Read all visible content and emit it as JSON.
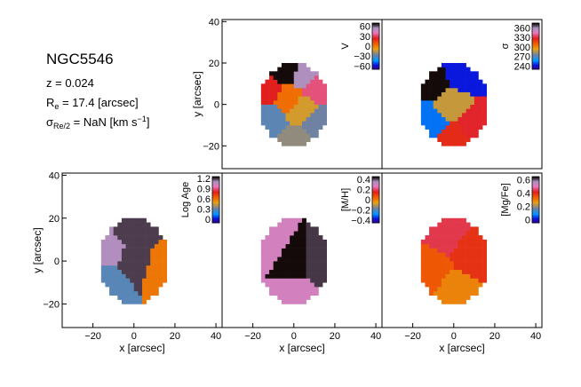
{
  "galaxy": {
    "name": "NGC5546",
    "redshift_label": "z = 0.024",
    "re_prefix": "R",
    "re_sub": "e",
    "re_suffix": " = 17.4 [arcsec]",
    "sigma_prefix": "σ",
    "sigma_sub": "Re/2",
    "sigma_mid": " = NaN [km s",
    "sigma_sup": "−1",
    "sigma_end": "]"
  },
  "chart_data": [
    {
      "type": "heatmap",
      "name": "V",
      "x_range": [
        -35,
        43
      ],
      "y_range": [
        -31,
        41
      ],
      "xticks": [],
      "yticks": [
        -20,
        0,
        20,
        40
      ],
      "xlabel": "",
      "ylabel": "y [arcsec]",
      "colorbar": {
        "label": "V",
        "ticks": [
          60,
          30,
          0,
          -30,
          -60
        ],
        "range": [
          -70,
          70
        ]
      },
      "sample_values": [
        {
          "x": -3,
          "y": 17,
          "v": 70
        },
        {
          "x": 5,
          "y": 15,
          "v": 55
        },
        {
          "x": -13,
          "y": 7,
          "v": 25
        },
        {
          "x": -2,
          "y": 2,
          "v": 5
        },
        {
          "x": 3,
          "y": -2,
          "v": -10
        },
        {
          "x": 12,
          "y": -9,
          "v": -25
        },
        {
          "x": 0,
          "y": -17,
          "v": -20
        },
        {
          "x": -11,
          "y": -7,
          "v": -28
        },
        {
          "x": 11,
          "y": 8,
          "v": 35
        }
      ]
    },
    {
      "type": "heatmap",
      "name": "σ",
      "x_range": [
        -35,
        43
      ],
      "y_range": [
        -31,
        41
      ],
      "xticks": [],
      "yticks": [],
      "xlabel": "",
      "ylabel": "",
      "colorbar": {
        "label": "σ",
        "ticks": [
          360,
          330,
          300,
          270,
          240
        ],
        "range": [
          230,
          375
        ]
      },
      "sample_values": [
        {
          "x": -10,
          "y": 10,
          "v": 375
        },
        {
          "x": 4,
          "y": 15,
          "v": 245
        },
        {
          "x": -2,
          "y": 0,
          "v": 290
        },
        {
          "x": 10,
          "y": -10,
          "v": 330
        },
        {
          "x": -11,
          "y": -8,
          "v": 255
        },
        {
          "x": 0,
          "y": -17,
          "v": 325
        }
      ]
    },
    {
      "type": "heatmap",
      "name": "Log Age",
      "x_range": [
        -35,
        43
      ],
      "y_range": [
        -31,
        41
      ],
      "xticks": [
        -20,
        0,
        20,
        40
      ],
      "yticks": [
        -20,
        0,
        20,
        40
      ],
      "xlabel": "x [arcsec]",
      "ylabel": "y [arcsec]",
      "colorbar": {
        "label": "Log Age",
        "ticks": [
          1.2,
          0.9,
          0.6,
          0.3,
          0.0
        ],
        "range": [
          -0.1,
          1.25
        ]
      },
      "sample_values": [
        {
          "x": 0,
          "y": 13,
          "v": 1.2
        },
        {
          "x": 14,
          "y": -4,
          "v": 0.6
        },
        {
          "x": -12,
          "y": -10,
          "v": 0.3
        },
        {
          "x": 0,
          "y": 0,
          "v": 1.2
        },
        {
          "x": -12,
          "y": 4,
          "v": 1.1
        }
      ]
    },
    {
      "type": "heatmap",
      "name": "[M/H]",
      "x_range": [
        -35,
        43
      ],
      "y_range": [
        -31,
        41
      ],
      "xticks": [
        -20,
        0,
        20,
        40
      ],
      "yticks": [],
      "xlabel": "x [arcsec]",
      "ylabel": "",
      "colorbar": {
        "label": "[M/H]",
        "ticks": [
          0.4,
          0.2,
          0.0,
          -0.2,
          -0.4
        ],
        "range": [
          -0.45,
          0.45
        ]
      },
      "sample_values": [
        {
          "x": -12,
          "y": 8,
          "v": 0.3
        },
        {
          "x": 14,
          "y": 0,
          "v": 0.42
        },
        {
          "x": 0,
          "y": -15,
          "v": 0.3
        },
        {
          "x": 0,
          "y": 0,
          "v": 0.45
        }
      ]
    },
    {
      "type": "heatmap",
      "name": "[Mg/Fe]",
      "x_range": [
        -35,
        43
      ],
      "y_range": [
        -31,
        41
      ],
      "xticks": [
        -20,
        0,
        20,
        40
      ],
      "yticks": [],
      "xlabel": "x [arcsec]",
      "ylabel": "",
      "colorbar": {
        "label": "[Mg/Fe]",
        "ticks": [
          0.6,
          0.4,
          0.2,
          0.0
        ],
        "range": [
          -0.05,
          0.65
        ]
      },
      "sample_values": [
        {
          "x": -3,
          "y": 15,
          "v": 0.45
        },
        {
          "x": 10,
          "y": 5,
          "v": 0.4
        },
        {
          "x": 0,
          "y": -15,
          "v": 0.3
        },
        {
          "x": -12,
          "y": -5,
          "v": 0.35
        }
      ]
    }
  ]
}
